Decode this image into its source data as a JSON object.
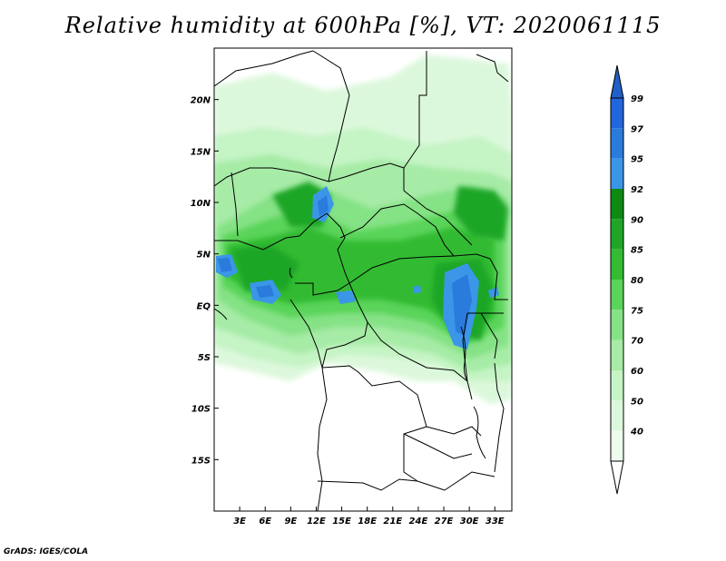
{
  "title": "Relative humidity at 600hPa [%], VT: 2020061115",
  "credit": "GrADS: IGES/COLA",
  "map": {
    "lat_labels": [
      "20N",
      "15N",
      "10N",
      "5N",
      "EQ",
      "5S",
      "10S",
      "15S"
    ],
    "lat_values": [
      20,
      15,
      10,
      5,
      0,
      -5,
      -10,
      -15
    ],
    "lon_labels": [
      "3E",
      "6E",
      "9E",
      "12E",
      "15E",
      "18E",
      "21E",
      "24E",
      "27E",
      "30E",
      "33E"
    ],
    "lon_values": [
      3,
      6,
      9,
      12,
      15,
      18,
      21,
      24,
      27,
      30,
      33
    ],
    "lon_range": [
      0,
      35
    ],
    "lat_range": [
      -20,
      25
    ]
  },
  "legend": {
    "levels": [
      "99",
      "97",
      "95",
      "92",
      "90",
      "85",
      "80",
      "75",
      "70",
      "60",
      "50",
      "40"
    ],
    "colors": [
      "#2266dd",
      "#2a7bdc",
      "#3b96e8",
      "#0e8a14",
      "#1fa627",
      "#33bb33",
      "#5ad45a",
      "#85e285",
      "#a6eba6",
      "#c5f4c5",
      "#dcf8dc",
      "#eefcee"
    ],
    "top_arrow_color": "#2060c8",
    "bottom_arrow_color": "#ffffff"
  }
}
